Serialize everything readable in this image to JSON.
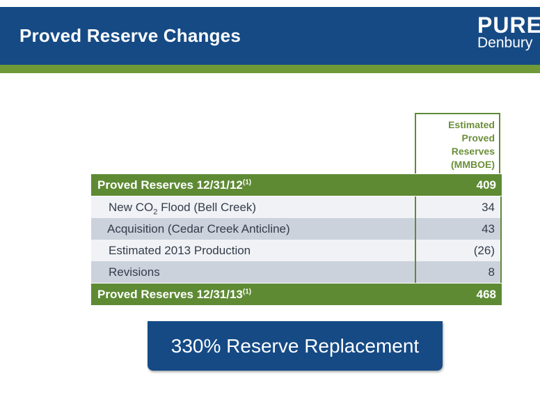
{
  "header": {
    "title": "Proved Reserve Changes",
    "logo_line1": "PURE",
    "logo_line2": "Denbury"
  },
  "table": {
    "column_header": [
      "Estimated",
      "Proved",
      "Reserves",
      "(MMBOE)"
    ],
    "rows": [
      {
        "label": "Proved Reserves 12/31/12",
        "footnote": "(1)",
        "value": "409",
        "kind": "total"
      },
      {
        "label_pre": "New CO",
        "label_sub": "2",
        "label_post": " Flood (Bell Creek)",
        "value": "34",
        "kind": "item"
      },
      {
        "label": "Acquisition (Cedar Creek Anticline)",
        "value": "43",
        "kind": "item"
      },
      {
        "label": "Estimated 2013 Production",
        "value": "(26)",
        "kind": "item"
      },
      {
        "label": "Revisions",
        "value": "8",
        "kind": "item"
      },
      {
        "label": "Proved Reserves 12/31/13",
        "footnote": "(1)",
        "value": "468",
        "kind": "total"
      }
    ]
  },
  "callout": {
    "text": "330% Reserve Replacement"
  },
  "colors": {
    "navy": "#154a85",
    "green": "#5e8a34",
    "row_light": "#f0f2f6",
    "row_dark": "#ccd2dc"
  }
}
